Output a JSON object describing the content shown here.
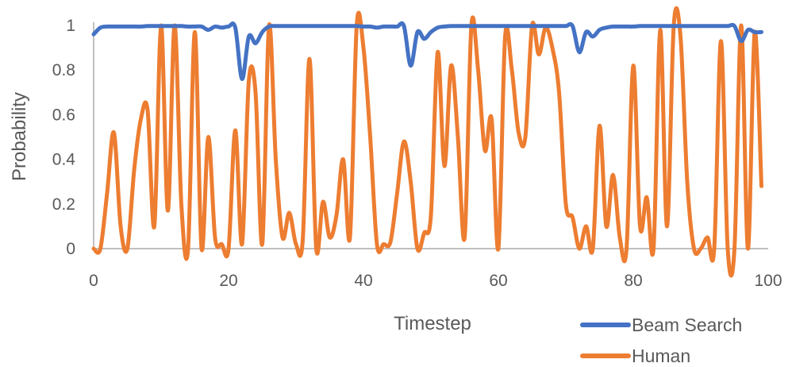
{
  "chart_data": {
    "type": "line",
    "xlabel": "Timestep",
    "ylabel": "Probability",
    "xlim": [
      0,
      100
    ],
    "ylim": [
      0,
      1
    ],
    "xticks": [
      "0",
      "20",
      "40",
      "60",
      "80",
      "100"
    ],
    "yticks": [
      "0",
      "0.2",
      "0.4",
      "0.6",
      "0.8",
      "1"
    ],
    "grid": false,
    "smooth": true,
    "legend_position": "bottom-right",
    "x_start": 0,
    "x_step": 1,
    "series": [
      {
        "name": "Beam Search",
        "color": "#4472C4",
        "values": [
          0.96,
          0.99,
          0.995,
          0.995,
          0.995,
          0.995,
          0.995,
          0.995,
          0.997,
          0.997,
          0.997,
          0.997,
          0.997,
          0.997,
          0.995,
          0.995,
          0.995,
          0.98,
          0.995,
          0.99,
          0.995,
          0.99,
          0.76,
          0.95,
          0.92,
          0.97,
          0.995,
          0.997,
          0.997,
          0.997,
          0.997,
          0.997,
          0.997,
          0.997,
          0.997,
          0.997,
          0.997,
          0.997,
          0.997,
          0.997,
          0.995,
          0.995,
          0.99,
          0.995,
          0.995,
          0.995,
          0.997,
          0.82,
          0.97,
          0.94,
          0.97,
          0.99,
          0.995,
          0.997,
          0.997,
          0.997,
          0.997,
          0.997,
          0.997,
          0.997,
          0.997,
          0.997,
          0.997,
          0.997,
          0.997,
          0.997,
          0.997,
          0.997,
          0.997,
          0.997,
          0.997,
          0.997,
          0.88,
          0.97,
          0.95,
          0.98,
          0.99,
          0.995,
          0.995,
          0.995,
          0.995,
          0.997,
          0.997,
          0.997,
          0.997,
          0.997,
          0.997,
          0.997,
          0.997,
          0.997,
          0.997,
          0.997,
          0.997,
          0.997,
          0.997,
          0.997,
          0.93,
          0.98,
          0.97,
          0.97
        ]
      },
      {
        "name": "Human",
        "color": "#ED7D31",
        "values": [
          0,
          0,
          0.25,
          0.52,
          0.1,
          0,
          0.35,
          0.58,
          0.62,
          0.1,
          1.0,
          0.17,
          1.0,
          0.2,
          0,
          0.97,
          0,
          0.5,
          0.05,
          0.02,
          0,
          0.53,
          0.02,
          0.75,
          0.7,
          0.02,
          1.0,
          0.4,
          0.05,
          0.16,
          0.02,
          0.04,
          0.85,
          0,
          0.21,
          0.05,
          0.15,
          0.4,
          0.05,
          1.0,
          0.9,
          0.5,
          0.02,
          0.02,
          0.03,
          0.25,
          0.48,
          0.3,
          0,
          0.07,
          0.15,
          0.88,
          0.37,
          0.82,
          0.5,
          0.05,
          1.0,
          0.8,
          0.44,
          0.58,
          0,
          0.95,
          0.8,
          0.52,
          0.5,
          1.0,
          0.87,
          0.99,
          0.9,
          0.7,
          0.2,
          0.14,
          0,
          0.1,
          0,
          0.55,
          0.1,
          0.33,
          0.05,
          0,
          0.82,
          0.1,
          0.23,
          0,
          0.98,
          0.1,
          1.0,
          0.95,
          0.3,
          0,
          0,
          0.05,
          0,
          0.93,
          0,
          0,
          1.0,
          0,
          0.97,
          0.28
        ]
      }
    ]
  }
}
